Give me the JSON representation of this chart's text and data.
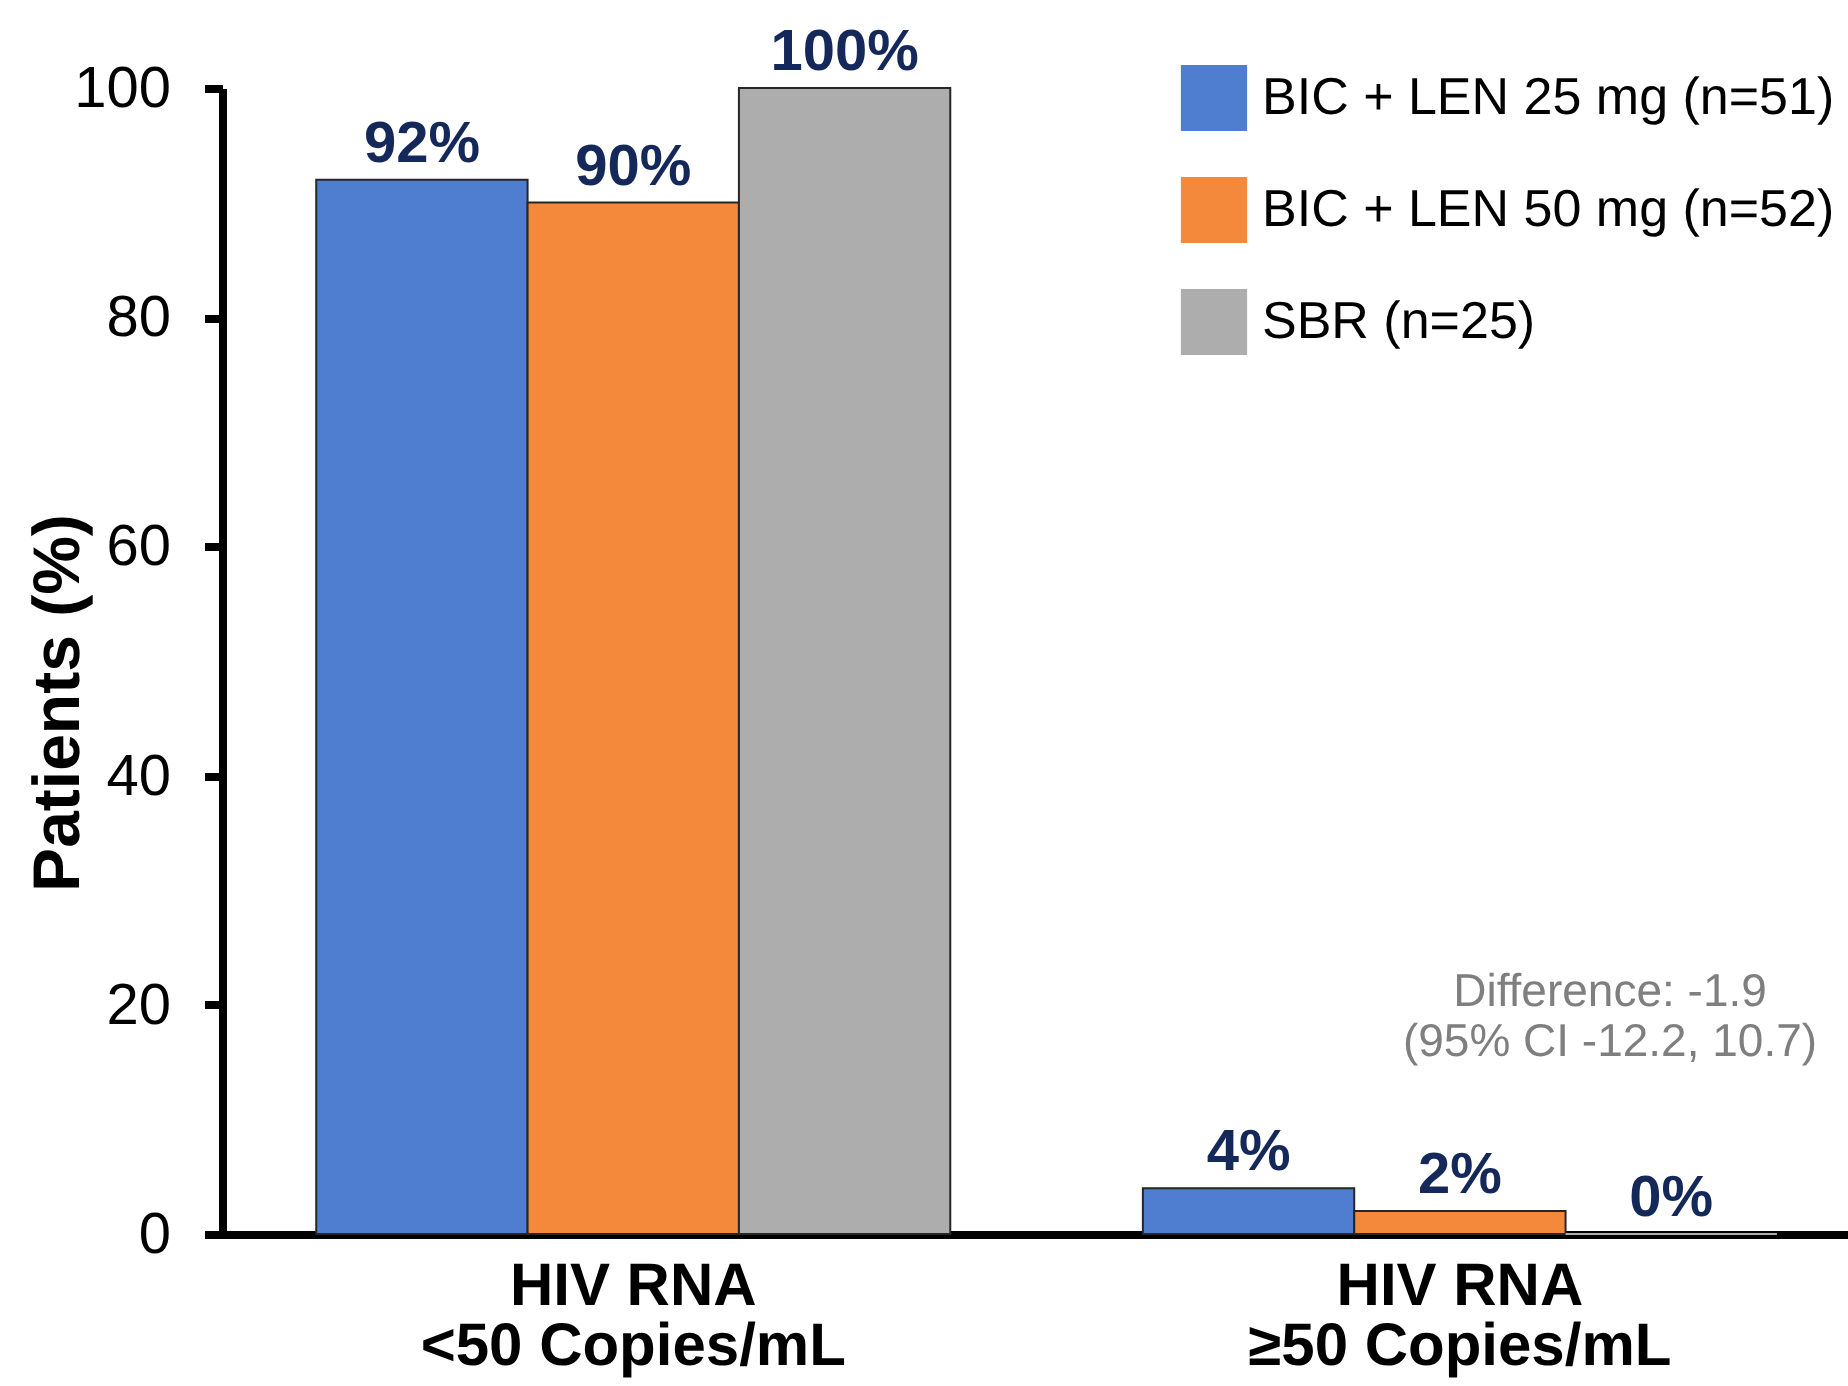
{
  "chart_data": {
    "type": "bar",
    "ylabel": "Patients (%)",
    "categories": [
      "HIV RNA\n<50 Copies/mL",
      "HIV RNA\n≥50 Copies/mL"
    ],
    "series": [
      {
        "name": "BIC + LEN 25 mg (n=51)",
        "color": "#4f7dd0",
        "values": [
          92,
          4
        ],
        "value_labels": [
          "92%",
          "4%"
        ]
      },
      {
        "name": "BIC + LEN 50 mg (n=52)",
        "color": "#f5893b",
        "values": [
          90,
          2
        ],
        "value_labels": [
          "90%",
          "2%"
        ]
      },
      {
        "name": "SBR (n=25)",
        "color": "#adadad",
        "values": [
          100,
          0
        ],
        "value_labels": [
          "100%",
          "0%"
        ]
      }
    ],
    "ylim": [
      0,
      100
    ],
    "yticks": [
      0,
      20,
      40,
      60,
      80,
      100
    ],
    "grid": false,
    "legend": "top right",
    "annotations": [
      "Difference: -1.9\n(95% CI -12.2, 10.7)"
    ]
  }
}
